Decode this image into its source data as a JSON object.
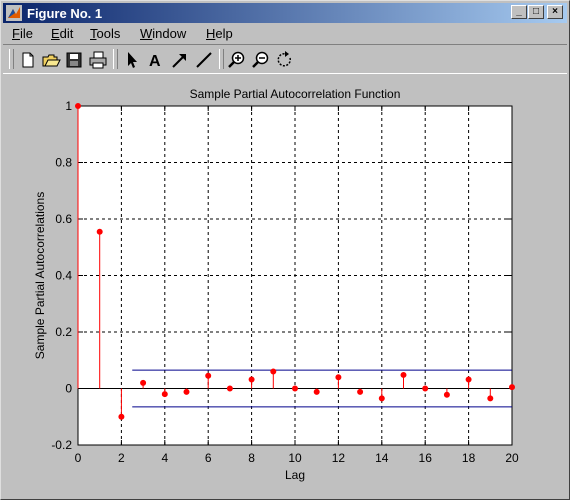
{
  "window": {
    "title": "Figure No. 1",
    "minimize_glyph": "_",
    "maximize_glyph": "□",
    "close_glyph": "×"
  },
  "menu": [
    {
      "label": "File",
      "name": "menu-file"
    },
    {
      "label": "Edit",
      "name": "menu-edit"
    },
    {
      "label": "Tools",
      "name": "menu-tools"
    },
    {
      "label": "Window",
      "name": "menu-window"
    },
    {
      "label": "Help",
      "name": "menu-help"
    }
  ],
  "toolbar": [
    {
      "name": "new-figure-icon"
    },
    {
      "name": "open-folder-icon"
    },
    {
      "name": "save-disk-icon"
    },
    {
      "name": "print-icon"
    },
    {
      "name": "select-arrow-icon"
    },
    {
      "name": "insert-text-icon"
    },
    {
      "name": "insert-arrow-icon"
    },
    {
      "name": "insert-line-icon"
    },
    {
      "name": "zoom-in-icon"
    },
    {
      "name": "zoom-out-icon"
    },
    {
      "name": "rotate-3d-icon"
    }
  ],
  "colors": {
    "stem": "#ff0000",
    "marker": "#ff0000",
    "bounds": "#00008b",
    "grid": "#000000",
    "title_bar_start": "#0a246a",
    "title_bar_end": "#a6caf0"
  },
  "chart_data": {
    "type": "stem",
    "title": "Sample Partial Autocorrelation Function",
    "xlabel": "Lag",
    "ylabel": "Sample Partial Autocorrelations",
    "xlim": [
      0,
      20
    ],
    "ylim": [
      -0.2,
      1
    ],
    "xticks": [
      0,
      2,
      4,
      6,
      8,
      10,
      12,
      14,
      16,
      18,
      20
    ],
    "yticks": [
      -0.2,
      0,
      0.2,
      0.4,
      0.6,
      0.8,
      1
    ],
    "xtick_labels": [
      "0",
      "2",
      "4",
      "6",
      "8",
      "10",
      "12",
      "14",
      "16",
      "18",
      "20"
    ],
    "ytick_labels": [
      "-0.2",
      "0",
      "0.2",
      "0.4",
      "0.6",
      "0.8",
      "1"
    ],
    "grid": true,
    "lags": [
      0,
      1,
      2,
      3,
      4,
      5,
      6,
      7,
      8,
      9,
      10,
      11,
      12,
      13,
      14,
      15,
      16,
      17,
      18,
      19,
      20
    ],
    "values": [
      1,
      0.555,
      -0.1,
      0.02,
      -0.02,
      -0.012,
      0.045,
      0.0,
      0.032,
      0.06,
      0.0,
      -0.012,
      0.04,
      -0.012,
      -0.035,
      0.048,
      0.0,
      -0.022,
      0.032,
      -0.035,
      0.005
    ],
    "confidence_bounds": [
      0.065,
      -0.065
    ],
    "bounds_x_range": [
      2.5,
      20
    ]
  }
}
